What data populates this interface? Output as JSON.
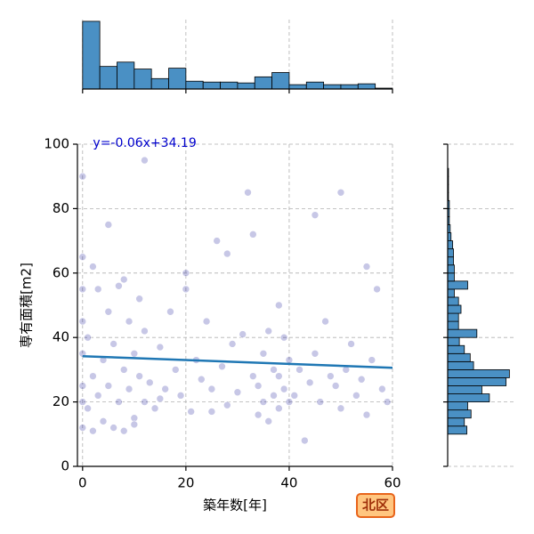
{
  "chart_data": {
    "type": "scatter",
    "x_label": "築年数[年]",
    "y_label": "専有面積[m2]",
    "annotation": "y=-0.06x+34.19",
    "badge": "北区",
    "xlim": [
      -1,
      60
    ],
    "ylim": [
      0,
      100
    ],
    "xticks": [
      0,
      20,
      40,
      60
    ],
    "yticks": [
      0,
      20,
      40,
      60,
      80,
      100
    ],
    "grid": true,
    "color": "#00008b",
    "regression": {
      "slope": -0.06,
      "intercept": 34.19,
      "color": "#1f77b4"
    },
    "x": [
      0,
      0,
      0,
      0,
      0,
      0,
      0,
      0,
      1,
      1,
      2,
      2,
      3,
      3,
      4,
      4,
      5,
      5,
      6,
      6,
      7,
      7,
      8,
      8,
      9,
      9,
      10,
      10,
      11,
      11,
      12,
      12,
      13,
      14,
      15,
      16,
      17,
      18,
      19,
      20,
      21,
      22,
      23,
      24,
      25,
      26,
      27,
      28,
      29,
      30,
      31,
      32,
      33,
      34,
      34,
      35,
      35,
      36,
      36,
      37,
      37,
      38,
      38,
      39,
      39,
      40,
      40,
      41,
      42,
      43,
      44,
      45,
      46,
      47,
      48,
      49,
      50,
      51,
      52,
      53,
      54,
      55,
      56,
      57,
      58,
      59,
      2,
      5,
      8,
      12,
      20,
      28,
      33,
      38,
      45,
      50,
      55,
      10,
      15,
      25
    ],
    "y": [
      12,
      20,
      25,
      35,
      45,
      55,
      65,
      90,
      18,
      40,
      11,
      28,
      22,
      55,
      14,
      33,
      25,
      48,
      12,
      38,
      20,
      56,
      11,
      30,
      24,
      45,
      15,
      35,
      28,
      52,
      20,
      42,
      26,
      18,
      37,
      24,
      48,
      30,
      22,
      60,
      17,
      33,
      27,
      45,
      24,
      70,
      31,
      19,
      38,
      23,
      41,
      85,
      28,
      16,
      25,
      20,
      35,
      14,
      42,
      22,
      30,
      18,
      28,
      24,
      40,
      20,
      33,
      22,
      30,
      8,
      26,
      35,
      20,
      45,
      28,
      25,
      18,
      30,
      38,
      22,
      27,
      16,
      33,
      55,
      24,
      20,
      62,
      75,
      58,
      95,
      55,
      66,
      72,
      50,
      78,
      85,
      62,
      13,
      21,
      17
    ],
    "x_hist": {
      "color": "#4a90c4",
      "bins": [
        0,
        3.333,
        6.667,
        10,
        13.333,
        16.667,
        20,
        23.333,
        26.667,
        30,
        33.333,
        36.667,
        40,
        43.333,
        46.667,
        50,
        53.333,
        56.667,
        60
      ],
      "counts": [
        390,
        130,
        155,
        115,
        60,
        120,
        45,
        40,
        40,
        35,
        70,
        95,
        25,
        40,
        25,
        25,
        30,
        5
      ],
      "ylim": [
        0,
        400
      ]
    },
    "y_hist": {
      "color": "#4a90c4",
      "bins": [
        10,
        12.5,
        15,
        17.5,
        20,
        22.5,
        25,
        27.5,
        30,
        32.5,
        35,
        37.5,
        40,
        42.5,
        45,
        47.5,
        50,
        52.5,
        55,
        57.5,
        60,
        62.5,
        65,
        67.5,
        70,
        72.5,
        75,
        77.5,
        80,
        82.5,
        85,
        87.5,
        90,
        92.5
      ],
      "counts": [
        115,
        100,
        140,
        120,
        250,
        205,
        350,
        370,
        155,
        135,
        100,
        70,
        175,
        65,
        65,
        80,
        65,
        40,
        120,
        40,
        40,
        35,
        35,
        30,
        20,
        15,
        10,
        10,
        10,
        5,
        5,
        5,
        5
      ],
      "xlim": [
        0,
        400
      ]
    }
  }
}
